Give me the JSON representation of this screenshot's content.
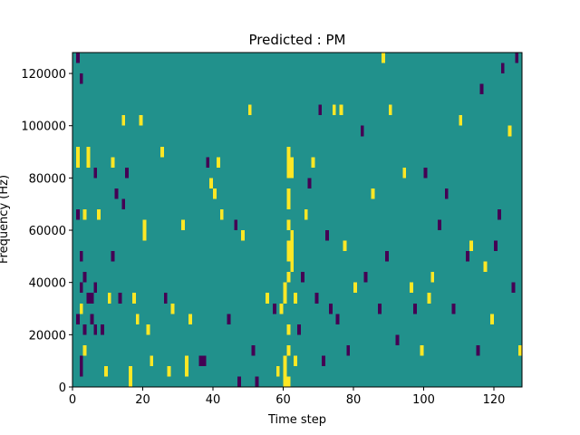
{
  "chart_data": {
    "type": "heatmap",
    "title": "Predicted : PM",
    "xlabel": "Time step",
    "ylabel": "Frequency (Hz)",
    "xlim": [
      0,
      128
    ],
    "ylim": [
      0,
      128000
    ],
    "xticks": [
      0,
      20,
      40,
      60,
      80,
      100,
      120
    ],
    "yticks": [
      0,
      20000,
      40000,
      60000,
      80000,
      100000,
      120000
    ],
    "x_step": 1,
    "y_step": 4000,
    "fill_value": 0,
    "colors": {
      "-1": "#440154",
      "0": "#21918c",
      "1": "#fde725"
    },
    "cells": [
      [
        1,
        124000,
        -1
      ],
      [
        2,
        116000,
        -1
      ],
      [
        1,
        88000,
        1
      ],
      [
        1,
        84000,
        1
      ],
      [
        4,
        88000,
        1
      ],
      [
        4,
        84000,
        1
      ],
      [
        6,
        80000,
        -1
      ],
      [
        1,
        64000,
        -1
      ],
      [
        3,
        64000,
        1
      ],
      [
        2,
        48000,
        -1
      ],
      [
        3,
        40000,
        -1
      ],
      [
        2,
        36000,
        -1
      ],
      [
        4,
        32000,
        -1
      ],
      [
        5,
        32000,
        -1
      ],
      [
        6,
        36000,
        -1
      ],
      [
        2,
        28000,
        1
      ],
      [
        1,
        24000,
        -1
      ],
      [
        3,
        20000,
        -1
      ],
      [
        5,
        24000,
        -1
      ],
      [
        6,
        20000,
        -1
      ],
      [
        2,
        4000,
        -1
      ],
      [
        2,
        8000,
        -1
      ],
      [
        3,
        12000,
        1
      ],
      [
        7,
        64000,
        1
      ],
      [
        8,
        20000,
        -1
      ],
      [
        9,
        4000,
        1
      ],
      [
        10,
        32000,
        1
      ],
      [
        11,
        48000,
        -1
      ],
      [
        11,
        84000,
        1
      ],
      [
        12,
        72000,
        -1
      ],
      [
        13,
        32000,
        -1
      ],
      [
        14,
        100000,
        1
      ],
      [
        14,
        68000,
        -1
      ],
      [
        15,
        80000,
        -1
      ],
      [
        16,
        0,
        1
      ],
      [
        16,
        4000,
        1
      ],
      [
        17,
        32000,
        1
      ],
      [
        18,
        24000,
        1
      ],
      [
        19,
        100000,
        1
      ],
      [
        20,
        60000,
        1
      ],
      [
        20,
        56000,
        1
      ],
      [
        21,
        20000,
        1
      ],
      [
        22,
        8000,
        1
      ],
      [
        25,
        88000,
        1
      ],
      [
        26,
        32000,
        -1
      ],
      [
        27,
        4000,
        1
      ],
      [
        28,
        28000,
        1
      ],
      [
        31,
        60000,
        1
      ],
      [
        32,
        4000,
        1
      ],
      [
        32,
        8000,
        1
      ],
      [
        33,
        24000,
        1
      ],
      [
        36,
        8000,
        -1
      ],
      [
        37,
        8000,
        -1
      ],
      [
        38,
        84000,
        -1
      ],
      [
        39,
        76000,
        1
      ],
      [
        40,
        72000,
        1
      ],
      [
        41,
        84000,
        1
      ],
      [
        42,
        64000,
        1
      ],
      [
        44,
        24000,
        -1
      ],
      [
        46,
        60000,
        -1
      ],
      [
        47,
        0,
        -1
      ],
      [
        48,
        56000,
        1
      ],
      [
        50,
        104000,
        1
      ],
      [
        51,
        12000,
        -1
      ],
      [
        52,
        0,
        -1
      ],
      [
        55,
        32000,
        1
      ],
      [
        57,
        28000,
        -1
      ],
      [
        58,
        4000,
        1
      ],
      [
        59,
        28000,
        1
      ],
      [
        60,
        0,
        1
      ],
      [
        60,
        4000,
        1
      ],
      [
        60,
        8000,
        1
      ],
      [
        60,
        32000,
        1
      ],
      [
        60,
        36000,
        1
      ],
      [
        61,
        0,
        1
      ],
      [
        61,
        12000,
        1
      ],
      [
        61,
        20000,
        1
      ],
      [
        61,
        40000,
        1
      ],
      [
        61,
        48000,
        1
      ],
      [
        61,
        52000,
        1
      ],
      [
        61,
        60000,
        1
      ],
      [
        61,
        68000,
        1
      ],
      [
        61,
        72000,
        1
      ],
      [
        61,
        80000,
        1
      ],
      [
        61,
        84000,
        1
      ],
      [
        61,
        88000,
        1
      ],
      [
        62,
        44000,
        1
      ],
      [
        62,
        48000,
        1
      ],
      [
        62,
        52000,
        1
      ],
      [
        62,
        56000,
        1
      ],
      [
        62,
        80000,
        1
      ],
      [
        62,
        84000,
        1
      ],
      [
        63,
        8000,
        1
      ],
      [
        63,
        32000,
        1
      ],
      [
        64,
        20000,
        -1
      ],
      [
        65,
        40000,
        -1
      ],
      [
        66,
        64000,
        1
      ],
      [
        67,
        76000,
        -1
      ],
      [
        68,
        84000,
        1
      ],
      [
        69,
        32000,
        -1
      ],
      [
        70,
        104000,
        -1
      ],
      [
        71,
        8000,
        -1
      ],
      [
        72,
        56000,
        -1
      ],
      [
        73,
        28000,
        -1
      ],
      [
        74,
        104000,
        1
      ],
      [
        75,
        24000,
        -1
      ],
      [
        76,
        104000,
        1
      ],
      [
        77,
        52000,
        1
      ],
      [
        78,
        12000,
        -1
      ],
      [
        80,
        36000,
        1
      ],
      [
        82,
        96000,
        -1
      ],
      [
        83,
        40000,
        -1
      ],
      [
        85,
        72000,
        1
      ],
      [
        87,
        28000,
        -1
      ],
      [
        88,
        124000,
        1
      ],
      [
        89,
        48000,
        -1
      ],
      [
        90,
        104000,
        1
      ],
      [
        92,
        16000,
        -1
      ],
      [
        94,
        80000,
        1
      ],
      [
        96,
        36000,
        1
      ],
      [
        97,
        28000,
        -1
      ],
      [
        99,
        12000,
        1
      ],
      [
        100,
        80000,
        -1
      ],
      [
        101,
        32000,
        1
      ],
      [
        102,
        40000,
        1
      ],
      [
        104,
        60000,
        -1
      ],
      [
        106,
        72000,
        -1
      ],
      [
        108,
        28000,
        -1
      ],
      [
        110,
        100000,
        1
      ],
      [
        112,
        48000,
        -1
      ],
      [
        113,
        52000,
        1
      ],
      [
        115,
        12000,
        -1
      ],
      [
        116,
        112000,
        -1
      ],
      [
        117,
        44000,
        1
      ],
      [
        119,
        24000,
        1
      ],
      [
        120,
        52000,
        -1
      ],
      [
        121,
        64000,
        -1
      ],
      [
        122,
        120000,
        -1
      ],
      [
        124,
        96000,
        1
      ],
      [
        125,
        36000,
        -1
      ],
      [
        126,
        124000,
        -1
      ],
      [
        127,
        12000,
        1
      ]
    ]
  }
}
